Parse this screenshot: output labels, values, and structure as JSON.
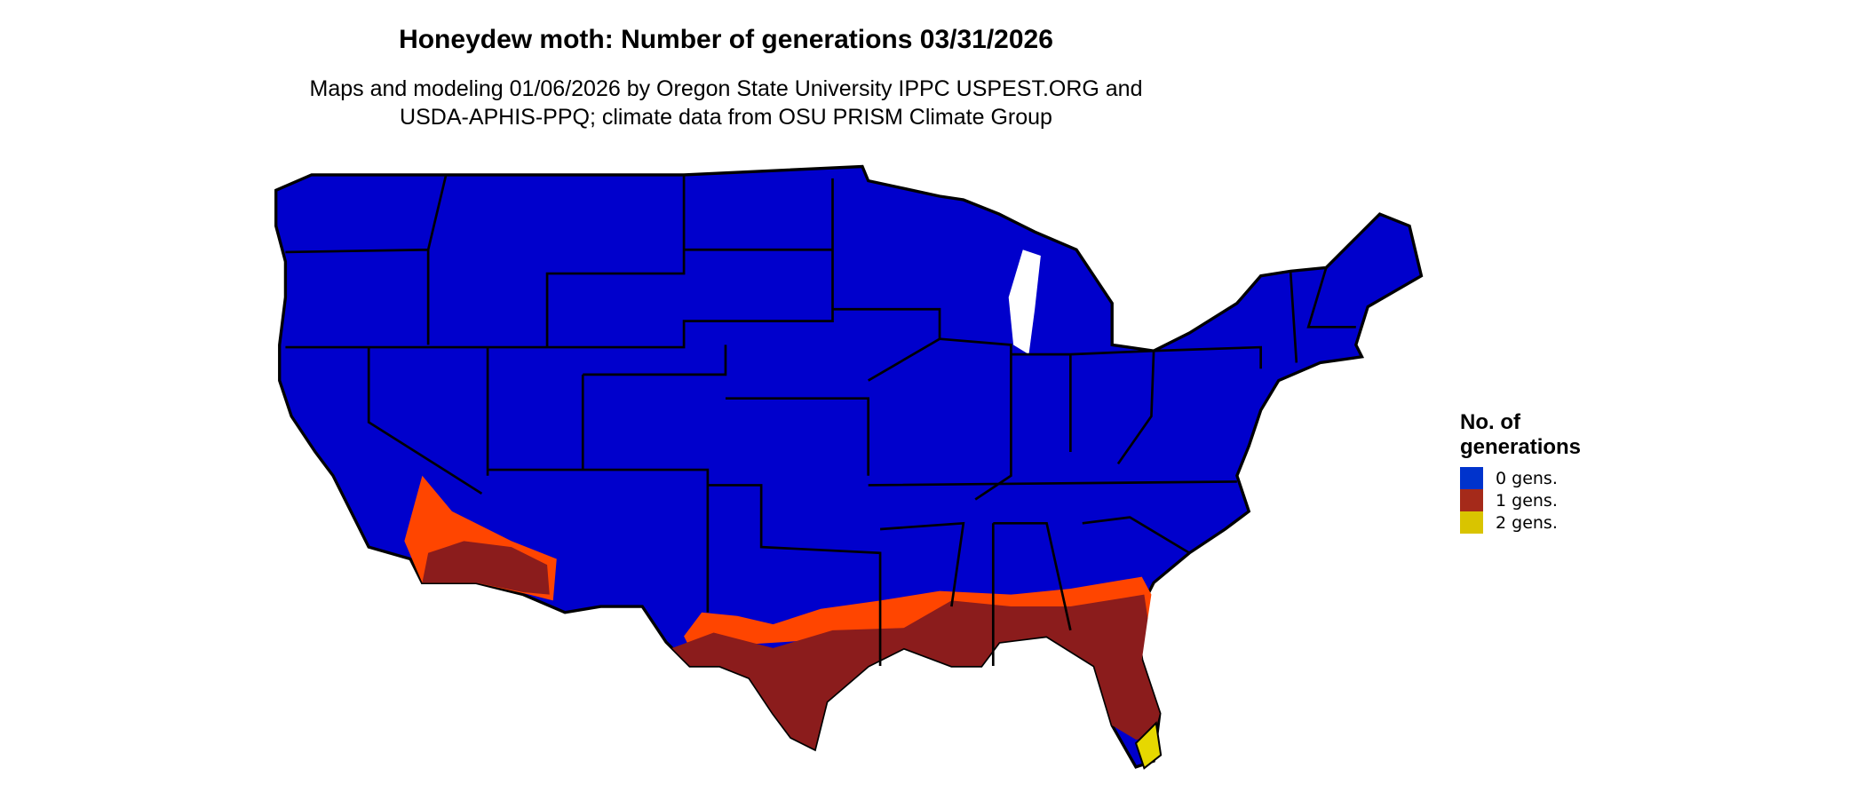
{
  "title": "Honeydew moth: Number of generations 03/31/2026",
  "subtitle_line1": "Maps and modeling 01/06/2026 by Oregon State University IPPC USPEST.ORG and",
  "subtitle_line2": "USDA-APHIS-PPQ; climate data from OSU PRISM Climate Group",
  "legend": {
    "title_line1": "No. of",
    "title_line2": "generations",
    "items": [
      {
        "label": "0 gens.",
        "color": "#0033cc"
      },
      {
        "label": "1 gens.",
        "color": "#a52a1a"
      },
      {
        "label": "2 gens.",
        "color": "#d9c400"
      }
    ]
  },
  "map_colors": {
    "zero_gens": "#0000cc",
    "one_gen": "#8b1c1c",
    "fringe": "#ff4500",
    "two_gens": "#e6d800",
    "borders": "#000000"
  }
}
